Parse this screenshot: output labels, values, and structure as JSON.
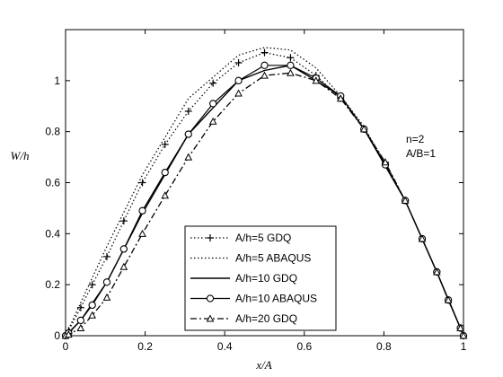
{
  "chart_data": {
    "type": "line",
    "title": "",
    "xlabel": "x/A",
    "ylabel": "W/h",
    "xlim": [
      0,
      1
    ],
    "ylim": [
      0,
      1.2
    ],
    "xticks": [
      "0",
      "0.2",
      "0.4",
      "0.6",
      "0.8",
      "1"
    ],
    "yticks": [
      "0",
      "0.2",
      "0.4",
      "0.6",
      "0.8",
      "1"
    ],
    "annotations": [
      "n=2",
      "A/B=1"
    ],
    "legend_position": "lower-center",
    "grid": false,
    "series": [
      {
        "name": "A/h=5 GDQ",
        "style": "dotted-plus",
        "x": [
          0,
          0.0076,
          0.0381,
          0.067,
          0.1038,
          0.1464,
          0.1931,
          0.25,
          0.3087,
          0.3706,
          0.4347,
          0.5,
          0.5653,
          0.6294,
          0.6913,
          0.75,
          0.8036,
          0.8536,
          0.8962,
          0.933,
          0.9619,
          0.9924,
          1
        ],
        "y": [
          0,
          0.02,
          0.11,
          0.2,
          0.31,
          0.45,
          0.6,
          0.75,
          0.88,
          0.99,
          1.07,
          1.11,
          1.09,
          1.02,
          0.93,
          0.81,
          0.68,
          0.53,
          0.38,
          0.25,
          0.14,
          0.03,
          0
        ]
      },
      {
        "name": "A/h=5 ABAQUS",
        "style": "dotted",
        "x": [
          0,
          0.0381,
          0.1038,
          0.1931,
          0.3087,
          0.4347,
          0.5,
          0.5653,
          0.6294,
          0.6913,
          0.75,
          0.8536,
          0.933,
          0.9924,
          1
        ],
        "y": [
          0,
          0.13,
          0.35,
          0.63,
          0.93,
          1.1,
          1.13,
          1.12,
          1.05,
          0.94,
          0.82,
          0.53,
          0.25,
          0.03,
          0
        ]
      },
      {
        "name": "A/h=10 GDQ",
        "style": "solid",
        "x": [
          0,
          0.0381,
          0.1038,
          0.1931,
          0.3087,
          0.4347,
          0.5,
          0.5653,
          0.6294,
          0.6913,
          0.75,
          0.8536,
          0.933,
          0.9924,
          1
        ],
        "y": [
          0,
          0.06,
          0.21,
          0.48,
          0.79,
          1.0,
          1.04,
          1.06,
          1.0,
          0.94,
          0.81,
          0.53,
          0.25,
          0.03,
          0
        ]
      },
      {
        "name": "A/h=10 ABAQUS",
        "style": "solid-circle",
        "x": [
          0,
          0.0076,
          0.0381,
          0.067,
          0.1038,
          0.1464,
          0.1931,
          0.25,
          0.3087,
          0.3706,
          0.4347,
          0.5,
          0.5653,
          0.6294,
          0.6913,
          0.75,
          0.8036,
          0.8536,
          0.8962,
          0.933,
          0.9619,
          0.9924,
          1
        ],
        "y": [
          0,
          0.01,
          0.06,
          0.12,
          0.21,
          0.34,
          0.49,
          0.64,
          0.79,
          0.91,
          1.0,
          1.06,
          1.06,
          1.01,
          0.94,
          0.81,
          0.67,
          0.53,
          0.38,
          0.25,
          0.14,
          0.03,
          0
        ]
      },
      {
        "name": "A/h=20 GDQ",
        "style": "dashdot-triangle",
        "x": [
          0,
          0.0076,
          0.0381,
          0.067,
          0.1038,
          0.1464,
          0.1931,
          0.25,
          0.3087,
          0.3706,
          0.4347,
          0.5,
          0.5653,
          0.6294,
          0.6913,
          0.75,
          0.8036,
          0.8536,
          0.8962,
          0.933,
          0.9619,
          0.9924,
          1
        ],
        "y": [
          0,
          0.005,
          0.03,
          0.08,
          0.15,
          0.27,
          0.4,
          0.55,
          0.7,
          0.84,
          0.95,
          1.02,
          1.03,
          1.0,
          0.93,
          0.81,
          0.68,
          0.53,
          0.38,
          0.25,
          0.14,
          0.03,
          0
        ]
      }
    ]
  }
}
